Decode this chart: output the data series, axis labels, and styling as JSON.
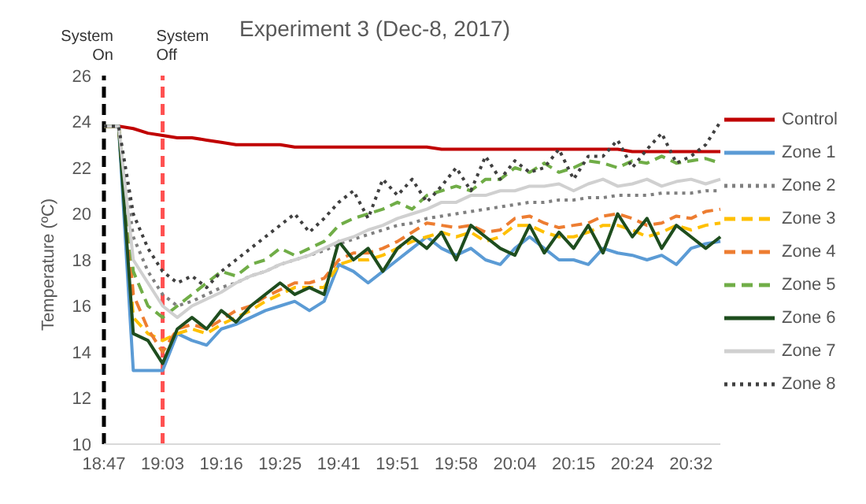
{
  "chart_data": {
    "type": "line",
    "title": "Experiment 3 (Dec-8, 2017)",
    "ylabel": "Temperature (ºC)",
    "categories": [
      "18:47",
      null,
      null,
      null,
      "19:03",
      null,
      null,
      null,
      "19:16",
      null,
      null,
      null,
      "19:25",
      null,
      null,
      null,
      "19:41",
      null,
      null,
      null,
      "19:51",
      null,
      null,
      null,
      "19:58",
      null,
      null,
      null,
      "20:04",
      null,
      null,
      null,
      "20:15",
      null,
      null,
      null,
      "20:24",
      null,
      null,
      null,
      "20:32",
      null,
      null
    ],
    "ylim": [
      10,
      26
    ],
    "yticks": [
      10,
      12,
      14,
      16,
      18,
      20,
      22,
      24,
      26
    ],
    "grid": false,
    "legend": "right",
    "marker": "none",
    "ref_lines": [
      {
        "axis": "x",
        "value": "18:47",
        "label": "System On",
        "color": "#000000",
        "line_style": "dashed"
      },
      {
        "axis": "x",
        "value": "19:03",
        "label": "System Off",
        "color": "#ff5050",
        "line_style": "dashed"
      }
    ],
    "series": [
      {
        "name": "Control",
        "color": "#c00000",
        "line_style": "solid",
        "values": [
          23.8,
          23.8,
          23.7,
          23.5,
          23.4,
          23.3,
          23.3,
          23.2,
          23.1,
          23.0,
          23.0,
          23.0,
          23.0,
          22.9,
          22.9,
          22.9,
          22.9,
          22.9,
          22.9,
          22.9,
          22.9,
          22.9,
          22.9,
          22.8,
          22.8,
          22.8,
          22.8,
          22.8,
          22.8,
          22.8,
          22.8,
          22.8,
          22.8,
          22.8,
          22.8,
          22.8,
          22.7,
          22.7,
          22.7,
          22.7,
          22.7,
          22.7,
          22.7
        ]
      },
      {
        "name": "Zone 1",
        "color": "#5b9bd5",
        "line_style": "solid",
        "values": [
          23.8,
          23.8,
          13.2,
          13.2,
          13.2,
          14.8,
          14.5,
          14.3,
          15.0,
          15.2,
          15.5,
          15.8,
          16.0,
          16.2,
          15.8,
          16.2,
          17.8,
          17.5,
          17.0,
          17.5,
          18.0,
          18.5,
          19.0,
          18.5,
          18.2,
          18.5,
          18.0,
          17.8,
          18.5,
          19.0,
          18.5,
          18.0,
          18.0,
          17.8,
          18.5,
          18.3,
          18.2,
          18.0,
          18.2,
          17.8,
          18.5,
          18.7,
          18.8
        ]
      },
      {
        "name": "Zone 2",
        "color": "#7f7f7f",
        "line_style": "dotted",
        "values": [
          23.8,
          23.8,
          19.0,
          17.5,
          16.5,
          16.0,
          16.2,
          16.5,
          16.8,
          17.0,
          17.3,
          17.5,
          17.8,
          18.0,
          18.2,
          18.4,
          18.7,
          18.9,
          19.1,
          19.3,
          19.5,
          19.6,
          19.8,
          19.9,
          20.0,
          20.1,
          20.2,
          20.3,
          20.4,
          20.5,
          20.5,
          20.6,
          20.6,
          20.7,
          20.7,
          20.8,
          20.8,
          20.8,
          20.9,
          20.9,
          20.9,
          21.0,
          21.0
        ]
      },
      {
        "name": "Zone 3",
        "color": "#ffc000",
        "line_style": "dashed",
        "values": [
          23.8,
          23.8,
          15.5,
          14.8,
          14.5,
          14.8,
          15.0,
          14.8,
          15.2,
          15.5,
          15.8,
          16.2,
          16.5,
          16.8,
          16.8,
          16.8,
          17.8,
          18.0,
          18.0,
          18.2,
          18.5,
          18.8,
          19.0,
          19.2,
          19.0,
          19.2,
          18.8,
          19.0,
          19.5,
          19.5,
          19.2,
          19.0,
          19.0,
          19.2,
          19.5,
          19.5,
          19.3,
          19.0,
          19.2,
          19.5,
          19.3,
          19.5,
          19.6
        ]
      },
      {
        "name": "Zone 4",
        "color": "#ed7d31",
        "line_style": "dashed",
        "values": [
          23.8,
          23.8,
          16.5,
          15.0,
          14.0,
          15.0,
          15.2,
          15.0,
          15.4,
          15.8,
          16.0,
          16.4,
          16.7,
          17.0,
          17.0,
          17.2,
          18.0,
          18.3,
          18.3,
          18.5,
          18.8,
          19.2,
          19.6,
          19.5,
          19.4,
          19.5,
          19.2,
          19.3,
          19.8,
          19.9,
          19.6,
          19.4,
          19.5,
          19.6,
          19.9,
          20.0,
          19.8,
          19.5,
          19.6,
          19.9,
          19.8,
          20.1,
          20.2
        ]
      },
      {
        "name": "Zone 5",
        "color": "#70ad47",
        "line_style": "dashed",
        "values": [
          23.8,
          23.8,
          17.5,
          16.0,
          15.5,
          16.0,
          16.5,
          17.0,
          17.5,
          17.3,
          17.8,
          18.0,
          18.5,
          18.2,
          18.5,
          18.8,
          19.5,
          19.8,
          20.0,
          20.2,
          20.5,
          20.2,
          20.8,
          21.0,
          21.2,
          21.0,
          21.5,
          21.5,
          22.0,
          21.8,
          22.2,
          21.8,
          22.0,
          22.3,
          22.2,
          22.0,
          22.3,
          22.2,
          22.5,
          22.2,
          22.3,
          22.4,
          22.2
        ]
      },
      {
        "name": "Zone 6",
        "color": "#1e4d1e",
        "line_style": "solid",
        "values": [
          23.8,
          23.8,
          14.8,
          14.5,
          13.5,
          15.0,
          15.5,
          15.0,
          15.8,
          15.3,
          16.0,
          16.5,
          17.0,
          16.5,
          16.8,
          16.5,
          18.8,
          18.0,
          18.5,
          17.5,
          18.5,
          19.0,
          18.5,
          19.2,
          18.0,
          19.5,
          19.0,
          18.5,
          18.2,
          19.5,
          18.3,
          19.2,
          18.5,
          19.5,
          18.3,
          20.0,
          19.0,
          19.8,
          18.5,
          19.5,
          19.0,
          18.5,
          19.0
        ]
      },
      {
        "name": "Zone 7",
        "color": "#d0d0d0",
        "line_style": "solid",
        "values": [
          23.8,
          23.8,
          18.0,
          17.0,
          16.0,
          15.5,
          16.0,
          16.3,
          16.6,
          17.0,
          17.3,
          17.5,
          17.8,
          18.0,
          18.2,
          18.5,
          18.8,
          19.0,
          19.3,
          19.5,
          19.8,
          20.0,
          20.2,
          20.5,
          20.5,
          20.8,
          20.8,
          21.0,
          21.0,
          21.2,
          21.2,
          21.3,
          21.0,
          21.3,
          21.5,
          21.2,
          21.3,
          21.5,
          21.2,
          21.4,
          21.5,
          21.3,
          21.5
        ]
      },
      {
        "name": "Zone 8",
        "color": "#404040",
        "line_style": "dotted",
        "values": [
          23.8,
          23.8,
          20.0,
          18.5,
          17.5,
          17.0,
          17.3,
          16.8,
          17.5,
          18.0,
          18.5,
          19.0,
          19.5,
          20.0,
          19.2,
          19.8,
          20.5,
          21.0,
          19.8,
          21.5,
          20.8,
          21.5,
          20.5,
          21.2,
          22.0,
          21.0,
          22.5,
          21.5,
          22.3,
          21.8,
          22.0,
          22.8,
          21.5,
          22.5,
          22.5,
          23.2,
          22.0,
          22.8,
          23.5,
          22.2,
          22.5,
          23.0,
          24.0
        ]
      }
    ]
  }
}
